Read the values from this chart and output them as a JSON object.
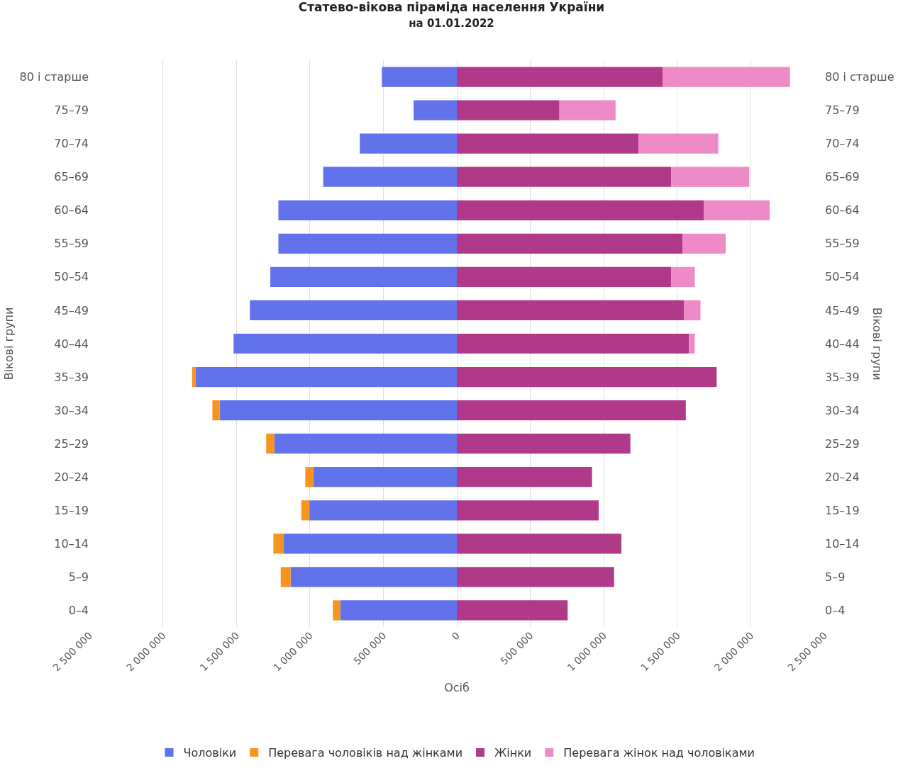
{
  "chart_data": {
    "type": "bar",
    "orientation": "horizontal",
    "stacked": true,
    "title": "Статево-вікова піраміда населення України",
    "subtitle": "на 01.01.2022",
    "xlabel": "Осіб",
    "ylabel": "Вікові групи",
    "annotations": [
      "Вікові групи"
    ],
    "categories": [
      "80 і старше",
      "75–79",
      "70–74",
      "65–69",
      "60–64",
      "55–59",
      "50–54",
      "45–49",
      "40–44",
      "35–39",
      "30–34",
      "25–29",
      "20–24",
      "15–19",
      "10–14",
      "5–9",
      "0–4"
    ],
    "series": [
      {
        "name": "Чоловіки",
        "color": "#6272ea",
        "values": [
          -510000,
          -294000,
          -660000,
          -909000,
          -1214000,
          -1214000,
          -1269000,
          -1408000,
          -1519000,
          -1779000,
          -1613000,
          -1242000,
          -976000,
          -1003000,
          -1181000,
          -1131000,
          -793000
        ]
      },
      {
        "name": "Перевага чоловіків над жінками",
        "color": "#f7941d",
        "values": [
          null,
          null,
          null,
          null,
          null,
          null,
          null,
          null,
          null,
          -22000,
          -50000,
          -55000,
          -55000,
          -55000,
          -67000,
          -67000,
          -50000
        ]
      },
      {
        "name": "Жінки",
        "color": "#b0398a",
        "values": [
          1402000,
          698000,
          1236000,
          1458000,
          1680000,
          1535000,
          1458000,
          1547000,
          1580000,
          1768000,
          1558000,
          1181000,
          920000,
          965000,
          1120000,
          1070000,
          754000
        ]
      },
      {
        "name": "Перевага жінок над чоловіками",
        "color": "#ef8ac8",
        "values": [
          865000,
          382000,
          543000,
          532000,
          449000,
          294000,
          161000,
          111000,
          39000,
          null,
          null,
          null,
          null,
          null,
          null,
          null,
          null
        ]
      }
    ],
    "xlim": [
      -2500000,
      2500000
    ],
    "xticks": [
      {
        "value": -2500000,
        "label": "2 500 000"
      },
      {
        "value": -2000000,
        "label": "2 000 000"
      },
      {
        "value": -1500000,
        "label": "1 500 000"
      },
      {
        "value": -1000000,
        "label": "1 000 000"
      },
      {
        "value": -500000,
        "label": "500 000"
      },
      0,
      {
        "value": 500000,
        "label": "500 000"
      },
      {
        "value": 1000000,
        "label": "1 000 000"
      },
      {
        "value": 1500000,
        "label": "1 500 000"
      },
      {
        "value": 2000000,
        "label": "2 000 000"
      },
      {
        "value": 2500000,
        "label": "2 500 000"
      }
    ],
    "grid": "x",
    "legend": "bottom"
  }
}
